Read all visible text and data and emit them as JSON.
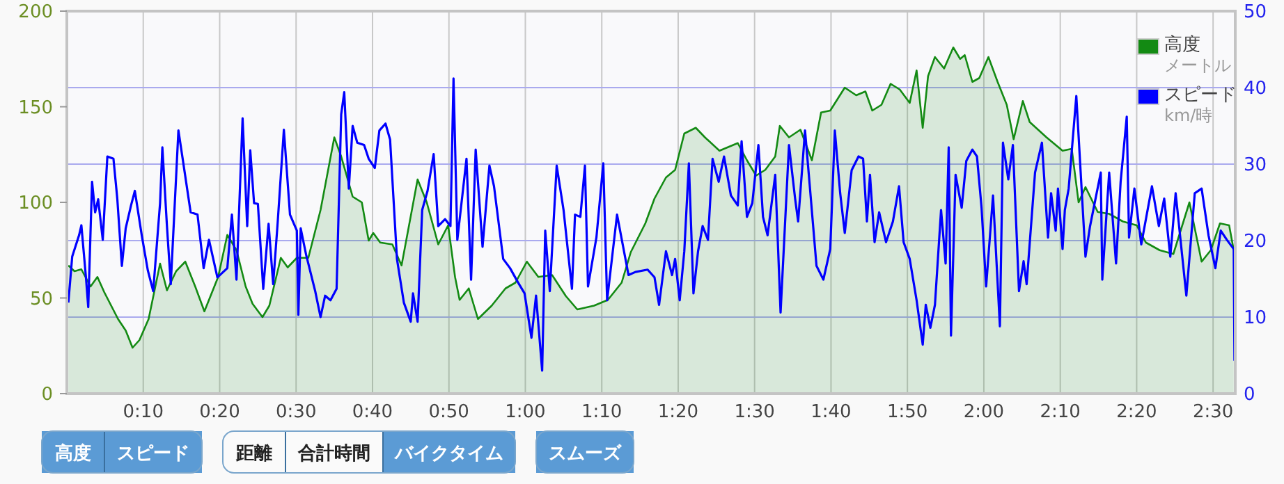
{
  "chart_data": {
    "type": "area",
    "xlabel": null,
    "xlim": [
      0,
      152.9
    ],
    "xticks": [
      {
        "value": 10,
        "label": "0:10"
      },
      {
        "value": 20,
        "label": "0:20"
      },
      {
        "value": 30,
        "label": "0:30"
      },
      {
        "value": 40,
        "label": "0:40"
      },
      {
        "value": 50,
        "label": "0:50"
      },
      {
        "value": 60,
        "label": "1:00"
      },
      {
        "value": 70,
        "label": "1:10"
      },
      {
        "value": 80,
        "label": "1:20"
      },
      {
        "value": 90,
        "label": "1:30"
      },
      {
        "value": 100,
        "label": "1:40"
      },
      {
        "value": 110,
        "label": "1:50"
      },
      {
        "value": 120,
        "label": "2:00"
      },
      {
        "value": 130,
        "label": "2:10"
      },
      {
        "value": 140,
        "label": "2:20"
      },
      {
        "value": 150,
        "label": "2:30"
      }
    ],
    "ylim": [
      0,
      200
    ],
    "yticks": [
      0,
      50,
      100,
      150,
      200
    ],
    "y2lim": [
      0,
      50
    ],
    "y2ticks": [
      0,
      10,
      20,
      30,
      40,
      50
    ],
    "grid": true,
    "legend": "top right",
    "series": [
      {
        "name": "高度",
        "color": "#138a13",
        "x": [
          0.2,
          1.0,
          1.9,
          3.1,
          4.0,
          4.9,
          5.8,
          6.7,
          7.7,
          8.6,
          9.5,
          10.7,
          12.2,
          13.1,
          14.3,
          15.5,
          16.8,
          18.0,
          19.8,
          21.0,
          22.2,
          23.4,
          24.3,
          25.6,
          26.5,
          28.0,
          28.9,
          30.1,
          31.6,
          33.2,
          35.0,
          35.9,
          37.4,
          38.6,
          39.5,
          40.1,
          41.0,
          42.6,
          43.8,
          45.9,
          47.1,
          48.6,
          49.9,
          50.8,
          51.4,
          52.6,
          53.8,
          55.6,
          57.4,
          58.7,
          60.2,
          61.7,
          63.5,
          65.3,
          66.8,
          69.0,
          70.8,
          72.6,
          73.8,
          75.7,
          76.9,
          78.4,
          79.6,
          80.8,
          82.3,
          83.5,
          85.4,
          87.8,
          89.0,
          90.2,
          91.4,
          92.7,
          93.3,
          94.5,
          96.0,
          97.5,
          98.7,
          99.9,
          101.8,
          103.3,
          104.5,
          105.4,
          106.6,
          107.8,
          109.0,
          110.3,
          111.2,
          112.0,
          112.7,
          113.6,
          114.8,
          116.0,
          116.9,
          117.5,
          118.5,
          119.4,
          120.6,
          121.8,
          123.0,
          123.9,
          125.1,
          126.0,
          128.2,
          130.3,
          131.5,
          132.4,
          133.3,
          134.9,
          136.4,
          138.2,
          140.0,
          141.2,
          143.0,
          144.8,
          146.9,
          148.5,
          149.7,
          150.9,
          152.1,
          152.7
        ],
        "values": [
          67,
          64,
          65,
          56,
          61,
          53,
          46,
          39,
          33,
          24,
          28,
          39,
          68,
          54,
          64,
          69,
          56,
          43,
          61,
          83,
          75,
          56,
          47,
          40,
          46,
          71,
          66,
          71,
          71,
          96,
          134,
          124,
          103,
          100,
          80,
          84,
          79,
          78,
          67,
          112,
          100,
          78,
          88,
          61,
          49,
          55,
          39,
          46,
          55,
          58,
          69,
          61,
          62,
          51,
          44,
          46,
          49,
          58,
          74,
          89,
          102,
          113,
          117,
          136,
          139,
          134,
          127,
          131,
          122,
          114,
          117,
          124,
          140,
          134,
          138,
          122,
          147,
          148,
          160,
          156,
          158,
          148,
          151,
          162,
          159,
          152,
          169,
          139,
          166,
          176,
          170,
          181,
          175,
          177,
          163,
          165,
          176,
          163,
          151,
          133,
          153,
          142,
          134,
          127,
          128,
          100,
          108,
          95,
          94,
          90,
          88,
          79,
          75,
          73,
          100,
          69,
          75,
          89,
          88,
          75
        ]
      },
      {
        "name": "スピード",
        "type": "line",
        "axis": "y2",
        "color": "#0000ff",
        "x": [
          0.2,
          0.7,
          1.6,
          1.9,
          2.5,
          2.8,
          3.3,
          3.7,
          4.1,
          4.7,
          5.3,
          6.1,
          6.6,
          7.2,
          7.7,
          8.4,
          8.9,
          9.8,
          10.6,
          11.3,
          12.2,
          12.5,
          13.1,
          13.6,
          14.6,
          15.2,
          16.2,
          17.1,
          17.9,
          18.6,
          19.7,
          21.0,
          21.6,
          22.2,
          23.0,
          23.6,
          24.0,
          24.5,
          25.0,
          25.7,
          26.4,
          27.0,
          27.6,
          28.4,
          29.2,
          30.1,
          30.3,
          30.6,
          31.3,
          32.5,
          33.2,
          33.8,
          34.5,
          35.3,
          35.9,
          36.3,
          36.9,
          37.4,
          38.0,
          38.9,
          39.5,
          40.3,
          40.9,
          41.7,
          42.3,
          43.2,
          44.1,
          45.0,
          45.3,
          45.9,
          46.5,
          47.2,
          48.0,
          48.6,
          49.5,
          50.2,
          50.6,
          51.1,
          52.3,
          52.9,
          53.5,
          54.4,
          55.3,
          55.9,
          57.1,
          58.0,
          59.0,
          59.9,
          60.8,
          61.4,
          62.2,
          62.6,
          63.2,
          64.1,
          65.0,
          66.1,
          66.5,
          67.2,
          67.8,
          68.2,
          69.3,
          70.2,
          70.7,
          72.0,
          73.5,
          74.4,
          76.0,
          76.9,
          77.5,
          78.4,
          79.2,
          79.6,
          80.2,
          80.8,
          81.4,
          82.0,
          82.6,
          83.2,
          83.9,
          84.5,
          85.3,
          86.0,
          86.9,
          87.8,
          88.3,
          89.0,
          89.7,
          90.5,
          91.1,
          91.7,
          92.7,
          93.4,
          94.5,
          95.3,
          95.7,
          96.6,
          97.2,
          98.1,
          99.0,
          99.9,
          100.5,
          101.2,
          101.8,
          102.7,
          103.6,
          104.2,
          104.7,
          105.1,
          105.7,
          106.3,
          107.2,
          108.1,
          108.9,
          109.5,
          110.3,
          111.2,
          112.0,
          112.4,
          113.0,
          113.6,
          114.4,
          115.0,
          115.4,
          115.7,
          116.3,
          117.1,
          117.7,
          118.5,
          119.1,
          119.7,
          120.3,
          121.2,
          122.1,
          122.5,
          123.2,
          123.8,
          124.6,
          125.2,
          125.6,
          126.7,
          127.6,
          128.4,
          128.8,
          129.4,
          129.7,
          130.3,
          130.6,
          131.1,
          132.1,
          133.3,
          133.9,
          135.3,
          135.5,
          136.4,
          137.3,
          137.9,
          138.7,
          139.0,
          139.7,
          140.6,
          142.0,
          142.9,
          143.6,
          144.4,
          145.1,
          146.5,
          147.6,
          148.5,
          149.4,
          150.3,
          151.0,
          151.8,
          152.7,
          152.8
        ],
        "values": [
          11.9,
          17.9,
          20.7,
          22.0,
          15.2,
          11.3,
          27.7,
          23.7,
          25.4,
          20.1,
          31.0,
          30.7,
          25.5,
          16.7,
          21.6,
          24.6,
          26.5,
          20.7,
          16.1,
          13.4,
          24.9,
          32.2,
          21.9,
          14.3,
          34.4,
          30.4,
          23.7,
          23.4,
          16.4,
          20.1,
          15.2,
          16.4,
          23.4,
          14.9,
          36.0,
          21.9,
          31.8,
          24.9,
          24.8,
          13.7,
          22.2,
          14.3,
          22.5,
          34.5,
          23.4,
          21.3,
          10.3,
          21.6,
          18.2,
          13.4,
          10.0,
          12.8,
          12.2,
          13.7,
          36.5,
          39.4,
          26.8,
          35.0,
          32.8,
          32.5,
          30.7,
          29.5,
          34.4,
          35.3,
          33.2,
          17.6,
          11.9,
          9.4,
          13.1,
          9.4,
          24.0,
          26.5,
          31.3,
          21.9,
          22.8,
          21.9,
          41.2,
          20.1,
          30.7,
          14.9,
          31.9,
          19.2,
          29.8,
          27.1,
          17.6,
          16.4,
          14.6,
          13.1,
          7.3,
          12.8,
          3.0,
          21.3,
          13.4,
          29.8,
          24.0,
          13.7,
          23.4,
          23.1,
          29.8,
          14.0,
          20.4,
          30.1,
          12.2,
          23.4,
          15.5,
          15.9,
          16.2,
          15.2,
          11.6,
          18.6,
          15.5,
          17.6,
          12.2,
          18.6,
          30.1,
          13.1,
          18.6,
          21.9,
          20.1,
          30.7,
          27.7,
          31.0,
          25.9,
          24.6,
          33.0,
          23.1,
          24.9,
          32.5,
          23.1,
          20.7,
          28.6,
          10.6,
          32.5,
          25.5,
          22.5,
          34.4,
          27.4,
          16.7,
          14.9,
          18.9,
          34.4,
          26.2,
          21.0,
          29.2,
          31.0,
          30.7,
          22.5,
          28.6,
          19.8,
          23.7,
          19.8,
          22.5,
          27.1,
          19.8,
          17.6,
          12.2,
          6.4,
          11.6,
          8.6,
          11.6,
          24.0,
          17.0,
          32.2,
          7.6,
          28.6,
          24.3,
          30.4,
          31.9,
          31.0,
          24.3,
          14.0,
          25.9,
          8.8,
          32.8,
          28.0,
          32.5,
          13.4,
          17.3,
          14.3,
          28.9,
          32.8,
          20.4,
          26.2,
          21.3,
          26.8,
          18.9,
          24.0,
          26.8,
          38.9,
          17.9,
          21.9,
          28.9,
          14.9,
          28.9,
          17.0,
          27.7,
          36.2,
          20.4,
          26.8,
          19.5,
          27.1,
          21.9,
          25.5,
          17.9,
          26.2,
          12.8,
          26.2,
          26.8,
          20.7,
          16.4,
          21.3,
          20.1,
          18.9,
          4.3
        ]
      }
    ],
    "annotations": [
      "メートル",
      "km/時",
      "高度",
      "スピード",
      "距離",
      "合計時間",
      "バイクタイム",
      "スムーズ"
    ]
  }
}
